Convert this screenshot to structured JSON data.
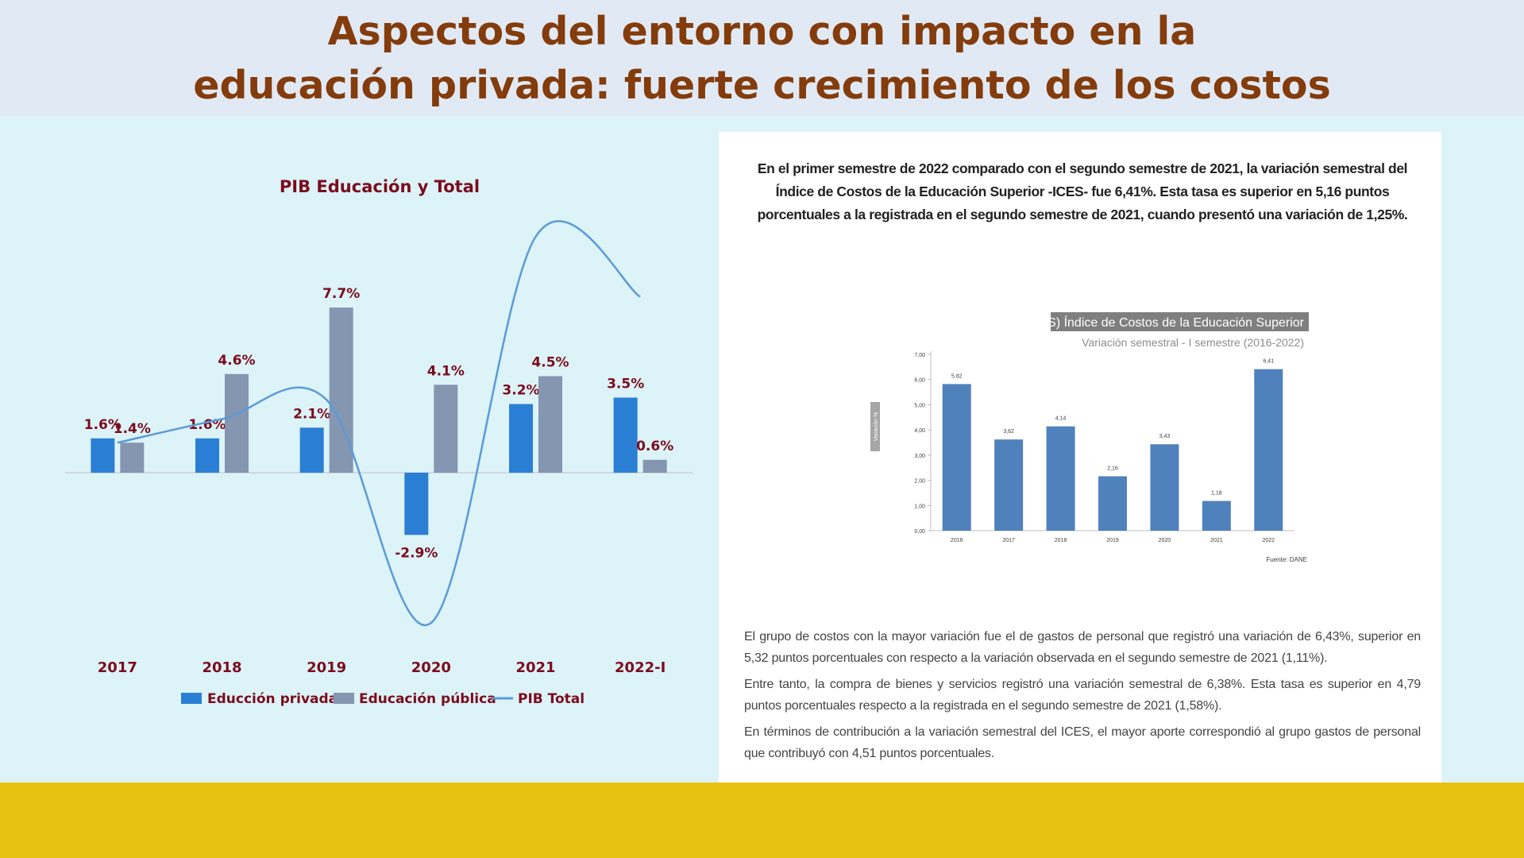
{
  "title": {
    "line1": "Aspectos del entorno con impacto en la",
    "line2": "educación privada: fuerte crecimiento de los costos"
  },
  "colors": {
    "header_bg": "#e1eaf4",
    "title_color": "#843c0c",
    "body_bg": "#dcf3f8",
    "footer_bg": "#e8c210",
    "privada": "#2a7fd4",
    "publica": "#8496b0",
    "pib": "#5b9bd5",
    "label_color": "#7b0c1d",
    "ices_bar": "#4f81bd"
  },
  "chart_data": [
    {
      "type": "bar",
      "title": "PIB Educación y Total",
      "categories": [
        "2017",
        "2018",
        "2019",
        "2020",
        "2021",
        "2022-I"
      ],
      "series": [
        {
          "name": "Educción privada",
          "values": [
            1.6,
            1.6,
            2.1,
            -2.9,
            3.2,
            3.5
          ],
          "labels": [
            "1.6%",
            "1.6%",
            "2.1%",
            "-2.9%",
            "3.2%",
            "3.5%"
          ]
        },
        {
          "name": "Educación pública",
          "values": [
            1.4,
            4.6,
            7.7,
            4.1,
            4.5,
            0.6
          ],
          "labels": [
            "1.4%",
            "4.6%",
            "7.7%",
            "4.1%",
            "4.5%",
            "0.6%"
          ]
        },
        {
          "name": "PIB Total",
          "type": "line",
          "values": [
            1.4,
            2.5,
            3.4,
            -7.0,
            11.0,
            8.2
          ]
        }
      ],
      "ylim": [
        -8,
        11
      ],
      "legend": "bottom"
    },
    {
      "type": "bar",
      "title": "(ICES) Índice de Costos de la Educación Superior",
      "subtitle": "Variación semestral -  I semestre (2016-2022)",
      "ylabel": "Variación  %",
      "categories": [
        "2016",
        "2017",
        "2018",
        "2019",
        "2020",
        "2021",
        "2022"
      ],
      "values": [
        5.82,
        3.62,
        4.14,
        2.16,
        3.43,
        1.18,
        6.41
      ],
      "value_labels": [
        "5,82",
        "3,62",
        "4,14",
        "2,16",
        "3,43",
        "1,18",
        "6,41"
      ],
      "ylim": [
        0,
        7
      ],
      "yticks": [
        "0,00",
        "1,00",
        "2,00",
        "3,00",
        "4,00",
        "5,00",
        "6,00",
        "7,00"
      ],
      "source": "Fuente: DANE"
    }
  ],
  "text": {
    "intro": "En el primer semestre de 2022 comparado con el segundo semestre de 2021, la variación semestral del Índice de Costos de la Educación Superior -ICES- fue 6,41%. Esta tasa es superior en 5,16 puntos porcentuales a la registrada en el segundo semestre de 2021, cuando presentó una variación de 1,25%.",
    "p1": "El grupo de costos con la mayor variación fue el de gastos de personal que registró una variación de 6,43%, superior en 5,32 puntos porcentuales con respecto a la variación observada en el segundo semestre de 2021 (1,11%).",
    "p2": "Entre tanto, la compra de bienes y servicios registró una variación semestral de 6,38%. Esta tasa es superior en 4,79 puntos porcentuales respecto a la registrada en el segundo semestre de 2021 (1,58%).",
    "p3": "En términos de contribución a la variación semestral del ICES, el mayor aporte correspondió al grupo gastos de personal que contribuyó con 4,51 puntos porcentuales."
  }
}
